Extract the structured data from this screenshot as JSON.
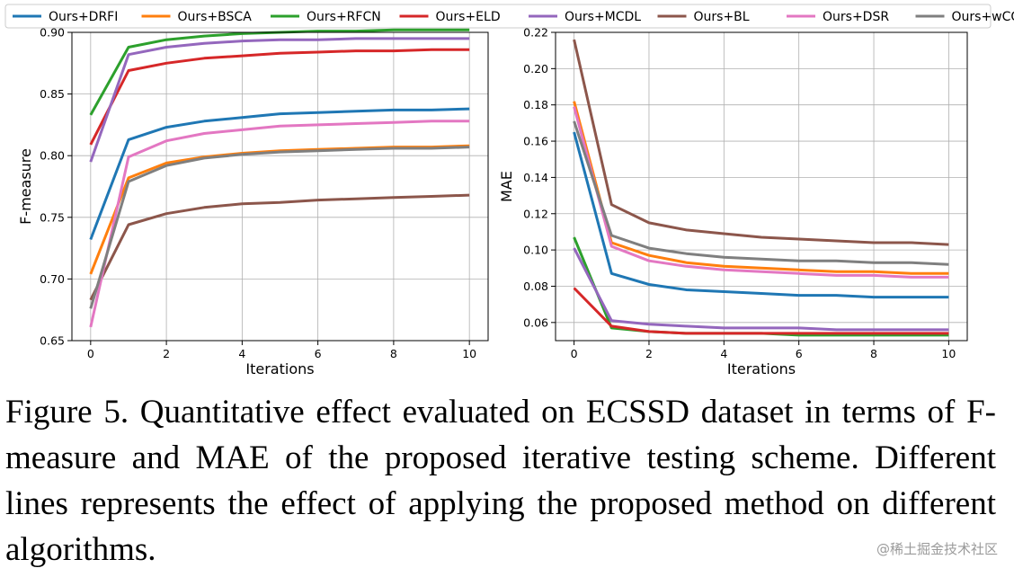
{
  "legend": [
    {
      "name": "Ours+DRFI",
      "color": "#1f77b4"
    },
    {
      "name": "Ours+BSCA",
      "color": "#ff7f0e"
    },
    {
      "name": "Ours+RFCN",
      "color": "#2ca02c"
    },
    {
      "name": "Ours+ELD",
      "color": "#d62728"
    },
    {
      "name": "Ours+MCDL",
      "color": "#9467bd"
    },
    {
      "name": "Ours+BL",
      "color": "#8c564b"
    },
    {
      "name": "Ours+DSR",
      "color": "#e377c2"
    },
    {
      "name": "Ours+wCO",
      "color": "#7f7f7f"
    }
  ],
  "chart_data": [
    {
      "type": "line",
      "xlabel": "Iterations",
      "ylabel": "F-measure",
      "xlim": [
        0,
        10
      ],
      "ylim": [
        0.65,
        0.9
      ],
      "xticks": [
        "0",
        "2",
        "4",
        "6",
        "8",
        "10"
      ],
      "yticks": [
        "0.65",
        "0.70",
        "0.75",
        "0.80",
        "0.85",
        "0.90"
      ],
      "grid": true,
      "x": [
        0,
        1,
        2,
        3,
        4,
        5,
        6,
        7,
        8,
        9,
        10
      ],
      "series": [
        {
          "name": "Ours+DRFI",
          "values": [
            0.732,
            0.813,
            0.823,
            0.828,
            0.831,
            0.834,
            0.835,
            0.836,
            0.837,
            0.837,
            0.838
          ]
        },
        {
          "name": "Ours+BSCA",
          "values": [
            0.704,
            0.782,
            0.794,
            0.799,
            0.802,
            0.804,
            0.805,
            0.806,
            0.807,
            0.807,
            0.808
          ]
        },
        {
          "name": "Ours+RFCN",
          "values": [
            0.833,
            0.888,
            0.894,
            0.897,
            0.899,
            0.9,
            0.901,
            0.901,
            0.902,
            0.902,
            0.902
          ]
        },
        {
          "name": "Ours+ELD",
          "values": [
            0.809,
            0.869,
            0.875,
            0.879,
            0.881,
            0.883,
            0.884,
            0.885,
            0.885,
            0.886,
            0.886
          ]
        },
        {
          "name": "Ours+MCDL",
          "values": [
            0.795,
            0.882,
            0.888,
            0.891,
            0.893,
            0.894,
            0.894,
            0.895,
            0.895,
            0.895,
            0.895
          ]
        },
        {
          "name": "Ours+BL",
          "values": [
            0.683,
            0.744,
            0.753,
            0.758,
            0.761,
            0.762,
            0.764,
            0.765,
            0.766,
            0.767,
            0.768
          ]
        },
        {
          "name": "Ours+DSR",
          "values": [
            0.661,
            0.799,
            0.812,
            0.818,
            0.821,
            0.824,
            0.825,
            0.826,
            0.827,
            0.828,
            0.828
          ]
        },
        {
          "name": "Ours+wCO",
          "values": [
            0.676,
            0.779,
            0.792,
            0.798,
            0.801,
            0.803,
            0.804,
            0.805,
            0.806,
            0.806,
            0.807
          ]
        }
      ]
    },
    {
      "type": "line",
      "xlabel": "Iterations",
      "ylabel": "MAE",
      "xlim": [
        0,
        10
      ],
      "ylim": [
        0.05,
        0.22
      ],
      "xticks": [
        "0",
        "2",
        "4",
        "6",
        "8",
        "10"
      ],
      "yticks": [
        "0.06",
        "0.08",
        "0.10",
        "0.12",
        "0.14",
        "0.16",
        "0.18",
        "0.20",
        "0.22"
      ],
      "grid": true,
      "x": [
        0,
        1,
        2,
        3,
        4,
        5,
        6,
        7,
        8,
        9,
        10
      ],
      "series": [
        {
          "name": "Ours+DRFI",
          "values": [
            0.165,
            0.087,
            0.081,
            0.078,
            0.077,
            0.076,
            0.075,
            0.075,
            0.074,
            0.074,
            0.074
          ]
        },
        {
          "name": "Ours+BSCA",
          "values": [
            0.182,
            0.104,
            0.097,
            0.093,
            0.091,
            0.09,
            0.089,
            0.088,
            0.088,
            0.087,
            0.087
          ]
        },
        {
          "name": "Ours+RFCN",
          "values": [
            0.107,
            0.057,
            0.055,
            0.054,
            0.054,
            0.054,
            0.053,
            0.053,
            0.053,
            0.053,
            0.053
          ]
        },
        {
          "name": "Ours+ELD",
          "values": [
            0.079,
            0.058,
            0.055,
            0.054,
            0.054,
            0.054,
            0.054,
            0.054,
            0.054,
            0.054,
            0.054
          ]
        },
        {
          "name": "Ours+MCDL",
          "values": [
            0.101,
            0.061,
            0.059,
            0.058,
            0.057,
            0.057,
            0.057,
            0.056,
            0.056,
            0.056,
            0.056
          ]
        },
        {
          "name": "Ours+BL",
          "values": [
            0.216,
            0.125,
            0.115,
            0.111,
            0.109,
            0.107,
            0.106,
            0.105,
            0.104,
            0.104,
            0.103
          ]
        },
        {
          "name": "Ours+DSR",
          "values": [
            0.179,
            0.102,
            0.094,
            0.091,
            0.089,
            0.088,
            0.087,
            0.086,
            0.086,
            0.085,
            0.085
          ]
        },
        {
          "name": "Ours+wCO",
          "values": [
            0.171,
            0.108,
            0.101,
            0.098,
            0.096,
            0.095,
            0.094,
            0.094,
            0.093,
            0.093,
            0.092
          ]
        }
      ]
    }
  ],
  "caption": "Figure 5. Quantitative effect evaluated on ECSSD dataset in terms of F-measure and MAE of the proposed iterative testing scheme. Different lines represents the effect of applying the proposed method on different algorithms.",
  "watermark": "@稀土掘金技术社区"
}
